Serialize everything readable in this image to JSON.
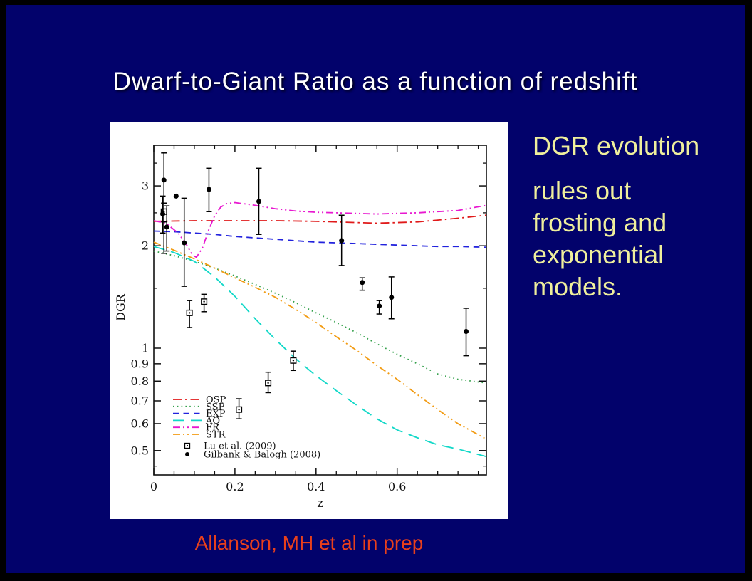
{
  "slide": {
    "title": "Dwarf-to-Giant Ratio as a function of redshift",
    "side_text": {
      "para1": "DGR evolution",
      "para2": "rules out frosting and exponential models."
    },
    "citation": "Allanson, MH et al in prep",
    "colors": {
      "background": "#02026b",
      "border": "#000000",
      "title_text": "#ffffff",
      "side_text": "#efef9c",
      "citation_text": "#e8401c",
      "panel": "#ffffff"
    }
  },
  "chart_data": {
    "type": "line",
    "title": "",
    "xlabel": "z",
    "ylabel": "DGR",
    "x_min": 0,
    "x_max": 0.82,
    "y_min": 0.424,
    "y_max": 3.95,
    "y_scale": "log",
    "grid": false,
    "legend_position": "lower-left",
    "x_major_ticks": [
      0,
      0.2,
      0.4,
      0.6
    ],
    "x_major_labels": [
      "0",
      "0.2",
      "0.4",
      "0.6"
    ],
    "x_minor_step": 0.05,
    "y_major_ticks": [
      0.5,
      0.6,
      0.7,
      0.8,
      0.9,
      1,
      2,
      3
    ],
    "y_major_labels": [
      "0.5",
      "0.6",
      "0.7",
      "0.8",
      "0.9",
      "1",
      "2",
      "3"
    ],
    "y_minor_ticks": [
      0.45,
      1.5,
      2.5,
      3.5
    ],
    "series": [
      {
        "name": "OSP",
        "color": "#e01a1a",
        "style": "dashdot",
        "points": [
          [
            0,
            2.36
          ],
          [
            0.1,
            2.37
          ],
          [
            0.2,
            2.37
          ],
          [
            0.3,
            2.37
          ],
          [
            0.4,
            2.36
          ],
          [
            0.45,
            2.35
          ],
          [
            0.5,
            2.34
          ],
          [
            0.55,
            2.33
          ],
          [
            0.6,
            2.34
          ],
          [
            0.65,
            2.35
          ],
          [
            0.7,
            2.38
          ],
          [
            0.75,
            2.41
          ],
          [
            0.82,
            2.46
          ]
        ]
      },
      {
        "name": "SSP",
        "color": "#33a04a",
        "style": "dotted",
        "points": [
          [
            0,
            1.93
          ],
          [
            0.05,
            1.87
          ],
          [
            0.1,
            1.8
          ],
          [
            0.15,
            1.72
          ],
          [
            0.2,
            1.63
          ],
          [
            0.25,
            1.54
          ],
          [
            0.3,
            1.45
          ],
          [
            0.35,
            1.36
          ],
          [
            0.4,
            1.27
          ],
          [
            0.45,
            1.19
          ],
          [
            0.5,
            1.11
          ],
          [
            0.55,
            1.03
          ],
          [
            0.6,
            0.96
          ],
          [
            0.65,
            0.9
          ],
          [
            0.7,
            0.84
          ],
          [
            0.75,
            0.81
          ],
          [
            0.82,
            0.79
          ]
        ]
      },
      {
        "name": "EXP",
        "color": "#2222dd",
        "style": "dashed",
        "points": [
          [
            0,
            2.21
          ],
          [
            0.05,
            2.2
          ],
          [
            0.1,
            2.18
          ],
          [
            0.15,
            2.16
          ],
          [
            0.2,
            2.13
          ],
          [
            0.25,
            2.11
          ],
          [
            0.3,
            2.09
          ],
          [
            0.35,
            2.07
          ],
          [
            0.4,
            2.05
          ],
          [
            0.45,
            2.04
          ],
          [
            0.5,
            2.03
          ],
          [
            0.55,
            2.02
          ],
          [
            0.6,
            2.01
          ],
          [
            0.65,
            2.0
          ],
          [
            0.7,
            1.99
          ],
          [
            0.75,
            1.99
          ],
          [
            0.82,
            1.98
          ]
        ]
      },
      {
        "name": "AQ",
        "color": "#12d8c8",
        "style": "longdash",
        "points": [
          [
            0,
            1.99
          ],
          [
            0.05,
            1.91
          ],
          [
            0.1,
            1.8
          ],
          [
            0.15,
            1.62
          ],
          [
            0.2,
            1.42
          ],
          [
            0.25,
            1.22
          ],
          [
            0.3,
            1.06
          ],
          [
            0.35,
            0.93
          ],
          [
            0.4,
            0.83
          ],
          [
            0.45,
            0.75
          ],
          [
            0.5,
            0.68
          ],
          [
            0.55,
            0.62
          ],
          [
            0.6,
            0.575
          ],
          [
            0.65,
            0.545
          ],
          [
            0.7,
            0.52
          ],
          [
            0.75,
            0.505
          ],
          [
            0.82,
            0.48
          ]
        ]
      },
      {
        "name": "FR",
        "color": "#e818d0",
        "style": "dashdotdot",
        "points": [
          [
            0,
            2.37
          ],
          [
            0.03,
            2.33
          ],
          [
            0.06,
            2.18
          ],
          [
            0.08,
            2.02
          ],
          [
            0.095,
            1.88
          ],
          [
            0.105,
            1.85
          ],
          [
            0.12,
            1.97
          ],
          [
            0.135,
            2.22
          ],
          [
            0.15,
            2.45
          ],
          [
            0.165,
            2.6
          ],
          [
            0.18,
            2.66
          ],
          [
            0.2,
            2.68
          ],
          [
            0.25,
            2.63
          ],
          [
            0.3,
            2.57
          ],
          [
            0.35,
            2.53
          ],
          [
            0.4,
            2.51
          ],
          [
            0.45,
            2.5
          ],
          [
            0.5,
            2.49
          ],
          [
            0.55,
            2.48
          ],
          [
            0.6,
            2.49
          ],
          [
            0.65,
            2.5
          ],
          [
            0.7,
            2.52
          ],
          [
            0.75,
            2.54
          ],
          [
            0.82,
            2.63
          ]
        ]
      },
      {
        "name": "STR",
        "color": "#f29b12",
        "style": "dashdotdot",
        "points": [
          [
            0,
            2.05
          ],
          [
            0.05,
            1.94
          ],
          [
            0.1,
            1.83
          ],
          [
            0.15,
            1.72
          ],
          [
            0.2,
            1.61
          ],
          [
            0.25,
            1.51
          ],
          [
            0.3,
            1.41
          ],
          [
            0.35,
            1.3
          ],
          [
            0.4,
            1.19
          ],
          [
            0.45,
            1.08
          ],
          [
            0.5,
            0.985
          ],
          [
            0.55,
            0.89
          ],
          [
            0.6,
            0.81
          ],
          [
            0.65,
            0.73
          ],
          [
            0.7,
            0.66
          ],
          [
            0.75,
            0.6
          ],
          [
            0.82,
            0.54
          ]
        ]
      }
    ],
    "scatter": [
      {
        "name": "Lu et al. (2009)",
        "marker": "open-square",
        "color": "#000000",
        "points": [
          [
            0.025,
            2.52,
            2.35,
            2.67
          ],
          [
            0.088,
            1.27,
            1.15,
            1.38
          ],
          [
            0.124,
            1.37,
            1.28,
            1.44
          ],
          [
            0.21,
            0.66,
            0.62,
            0.71
          ],
          [
            0.282,
            0.79,
            0.74,
            0.85
          ],
          [
            0.344,
            0.92,
            0.86,
            0.98
          ]
        ]
      },
      {
        "name": "Gilbank & Balogh (2008)",
        "marker": "filled-circle",
        "color": "#000000",
        "points": [
          [
            0.022,
            2.48,
            2.18,
            2.8
          ],
          [
            0.025,
            3.12,
            1.9,
            3.75
          ],
          [
            0.032,
            2.27,
            1.93,
            2.62
          ],
          [
            0.055,
            2.8,
            null,
            null
          ],
          [
            0.075,
            2.04,
            1.52,
            2.76
          ],
          [
            0.136,
            2.93,
            2.52,
            3.38
          ],
          [
            0.259,
            2.7,
            2.16,
            3.38
          ],
          [
            0.463,
            2.07,
            1.75,
            2.46
          ],
          [
            0.514,
            1.56,
            1.48,
            1.61
          ],
          [
            0.556,
            1.33,
            1.26,
            1.38
          ],
          [
            0.586,
            1.41,
            1.22,
            1.62
          ],
          [
            0.77,
            1.12,
            0.95,
            1.31
          ]
        ]
      }
    ]
  }
}
